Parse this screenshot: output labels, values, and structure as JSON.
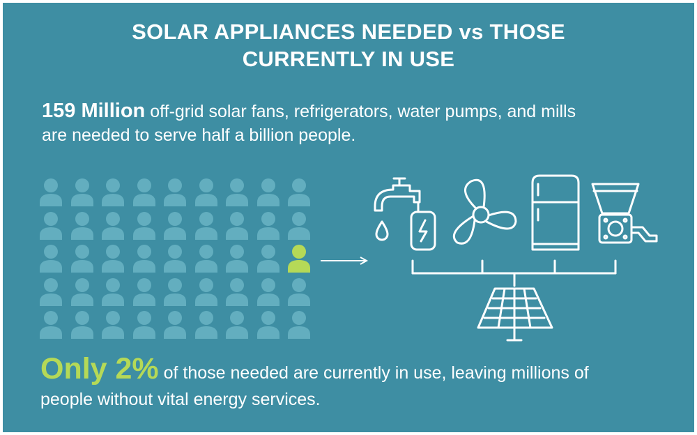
{
  "title": {
    "line1": "SOLAR APPLIANCES NEEDED vs THOSE",
    "line2": "CURRENTLY IN USE"
  },
  "stat_needed": {
    "highlight": "159 Million",
    "text_line1": "off-grid solar fans, refrigerators, water pumps, and mills",
    "text_line2": "are needed to serve half a billion people."
  },
  "stat_in_use": {
    "highlight": "Only 2%",
    "text_line1": "of those needed are currently in use, leaving millions of",
    "text_line2": "people without vital energy services."
  },
  "people_grid": {
    "rows": 5,
    "columns": 9,
    "highlighted_row": 3,
    "highlighted_column": 9,
    "person_color": "#63aebf",
    "highlight_color": "#b5d957"
  },
  "icons": {
    "appliances": [
      "water-pump-icon",
      "fan-icon",
      "refrigerator-icon",
      "mill-icon"
    ],
    "source": "solar-panel-icon",
    "arrow": "arrow-right-icon"
  },
  "colors": {
    "background": "#3e8ea3",
    "text": "#ffffff",
    "accent": "#b5d957"
  }
}
